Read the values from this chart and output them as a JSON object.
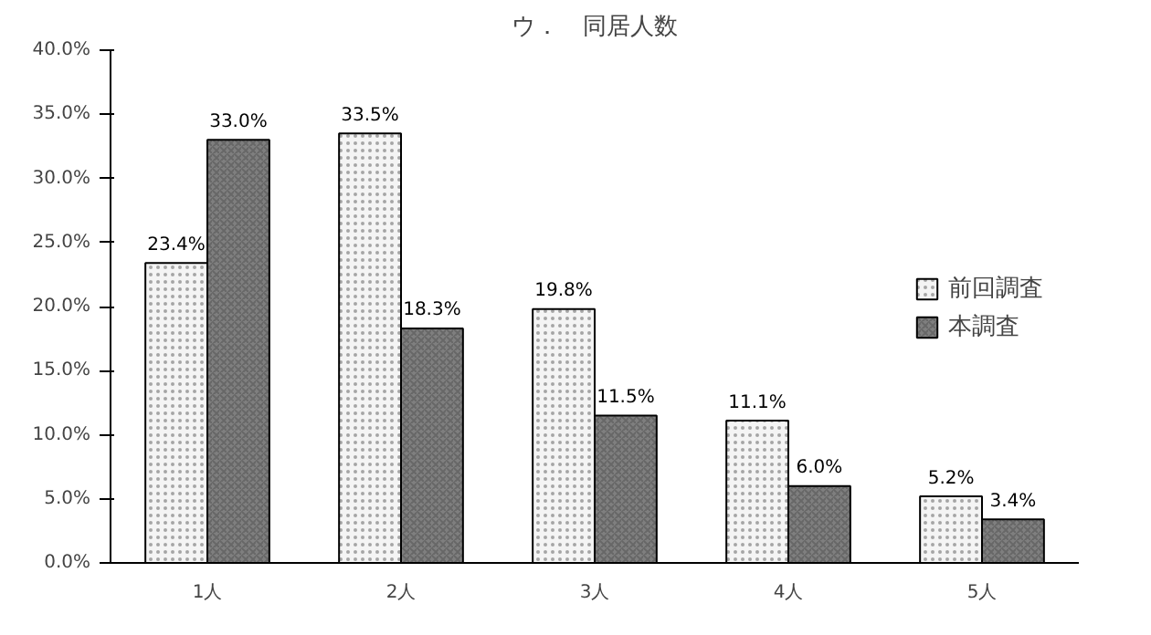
{
  "chart_data": {
    "type": "bar",
    "title": "ウ．　同居人数",
    "categories": [
      "1人",
      "2人",
      "3人",
      "4人",
      "5人"
    ],
    "series": [
      {
        "name": "前回調査",
        "color": "#f4f4f4",
        "values": [
          23.4,
          33.5,
          19.8,
          11.1,
          5.2
        ],
        "value_labels": [
          "23.4%",
          "33.5%",
          "19.8%",
          "11.1%",
          "5.2%"
        ]
      },
      {
        "name": "本調査",
        "color": "#7f7f7f",
        "values": [
          33.0,
          18.3,
          11.5,
          6.0,
          3.4
        ],
        "value_labels": [
          "33.0%",
          "18.3%",
          "11.5%",
          "6.0%",
          "3.4%"
        ]
      }
    ],
    "ylim": [
      0,
      40
    ],
    "yticks": [
      {
        "value": 0,
        "label": "0.0%"
      },
      {
        "value": 5,
        "label": "5.0%"
      },
      {
        "value": 10,
        "label": "10.0%"
      },
      {
        "value": 15,
        "label": "15.0%"
      },
      {
        "value": 20,
        "label": "20.0%"
      },
      {
        "value": 25,
        "label": "25.0%"
      },
      {
        "value": 30,
        "label": "30.0%"
      },
      {
        "value": 35,
        "label": "35.0%"
      },
      {
        "value": 40,
        "label": "40.0%"
      }
    ],
    "grid": false,
    "legend": "right"
  }
}
